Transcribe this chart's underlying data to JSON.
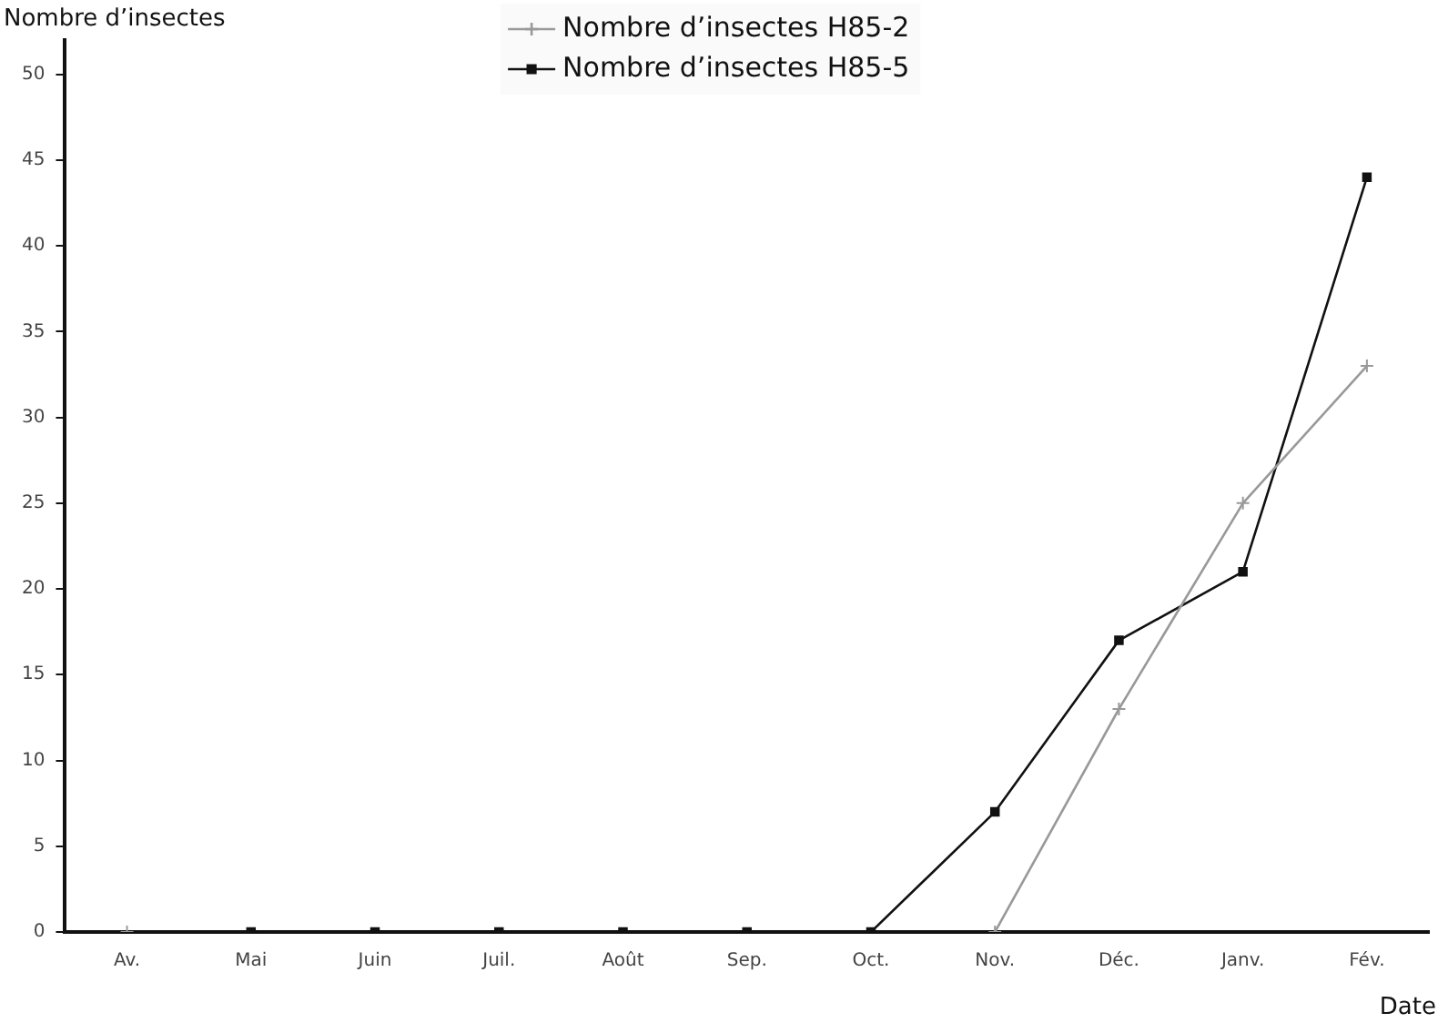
{
  "chart_data": {
    "type": "line",
    "ylabel": "Nombre d’insectes",
    "xlabel": "Date",
    "categories": [
      "Av.",
      "Mai",
      "Juin",
      "Juil.",
      "Août",
      "Sep.",
      "Oct.",
      "Nov.",
      "Déc.",
      "Janv.",
      "Fév."
    ],
    "series": [
      {
        "name": "Nombre d’insectes H85-2",
        "color": "#999999",
        "marker": "cross",
        "values": [
          0,
          null,
          null,
          null,
          null,
          null,
          null,
          0,
          13,
          25,
          33
        ]
      },
      {
        "name": "Nombre d’insectes H85-5",
        "color": "#111111",
        "marker": "square",
        "values": [
          null,
          0,
          0,
          0,
          0,
          0,
          0,
          7,
          17,
          21,
          44
        ]
      }
    ],
    "ylim": [
      0,
      52
    ],
    "yticks": [
      0,
      5,
      10,
      15,
      20,
      25,
      30,
      35,
      40,
      45,
      50
    ],
    "grid": false,
    "legend": "top"
  }
}
